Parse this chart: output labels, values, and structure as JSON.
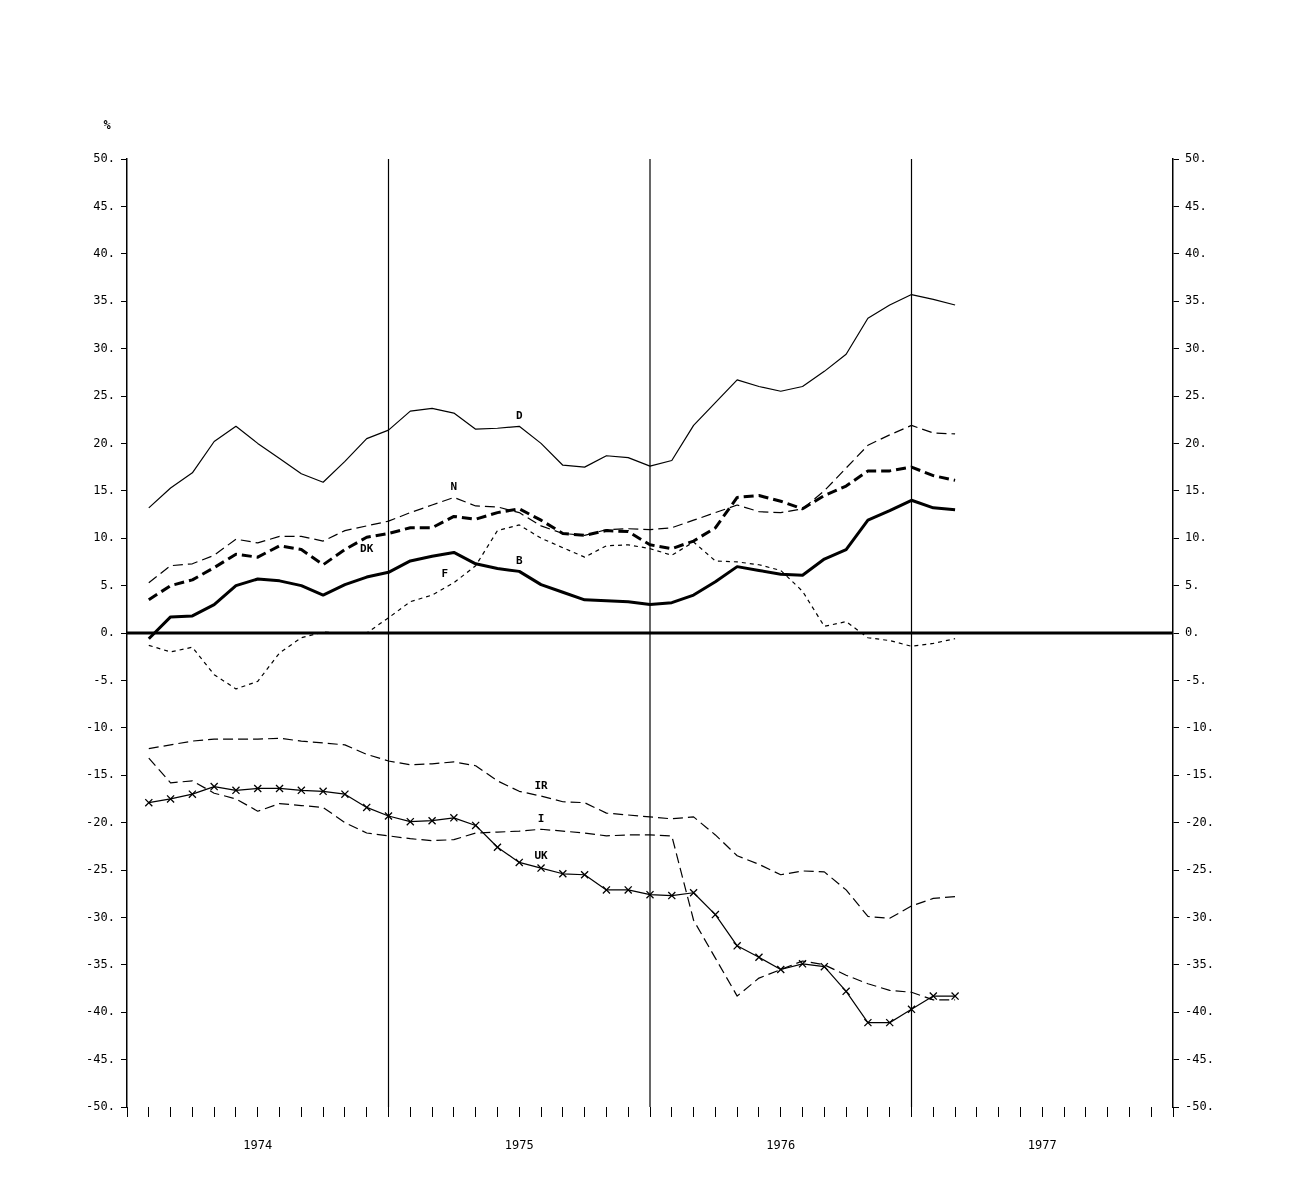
{
  "chart_data": {
    "type": "line",
    "ylabel": "%",
    "xlim": [
      "1974-01",
      "1978-01"
    ],
    "xticks": [
      {
        "value": "1974-01",
        "label": null
      },
      {
        "value": "1974-02",
        "label": null
      },
      {
        "value": "1974-03",
        "label": null
      },
      {
        "value": "1974-04",
        "label": null
      },
      {
        "value": "1974-05",
        "label": null
      },
      {
        "value": "1974-06",
        "label": null
      },
      {
        "value": "1974-07",
        "label": "1974"
      },
      {
        "value": "1974-08",
        "label": null
      },
      {
        "value": "1974-09",
        "label": null
      },
      {
        "value": "1974-10",
        "label": null
      },
      {
        "value": "1974-11",
        "label": null
      },
      {
        "value": "1974-12",
        "label": null
      },
      {
        "value": "1975-01",
        "label": null
      },
      {
        "value": "1975-02",
        "label": null
      },
      {
        "value": "1975-03",
        "label": null
      },
      {
        "value": "1975-04",
        "label": null
      },
      {
        "value": "1975-05",
        "label": null
      },
      {
        "value": "1975-06",
        "label": null
      },
      {
        "value": "1975-07",
        "label": "1975"
      },
      {
        "value": "1975-08",
        "label": null
      },
      {
        "value": "1975-09",
        "label": null
      },
      {
        "value": "1975-10",
        "label": null
      },
      {
        "value": "1975-11",
        "label": null
      },
      {
        "value": "1975-12",
        "label": null
      },
      {
        "value": "1976-01",
        "label": null
      },
      {
        "value": "1976-02",
        "label": null
      },
      {
        "value": "1976-03",
        "label": null
      },
      {
        "value": "1976-04",
        "label": null
      },
      {
        "value": "1976-05",
        "label": null
      },
      {
        "value": "1976-06",
        "label": null
      },
      {
        "value": "1976-07",
        "label": "1976"
      },
      {
        "value": "1976-08",
        "label": null
      },
      {
        "value": "1976-09",
        "label": null
      },
      {
        "value": "1976-10",
        "label": null
      },
      {
        "value": "1976-11",
        "label": null
      },
      {
        "value": "1976-12",
        "label": null
      },
      {
        "value": "1977-01",
        "label": null
      },
      {
        "value": "1977-02",
        "label": null
      },
      {
        "value": "1977-03",
        "label": null
      },
      {
        "value": "1977-04",
        "label": null
      },
      {
        "value": "1977-05",
        "label": null
      },
      {
        "value": "1977-06",
        "label": null
      },
      {
        "value": "1977-07",
        "label": "1977"
      },
      {
        "value": "1977-08",
        "label": null
      },
      {
        "value": "1977-09",
        "label": null
      },
      {
        "value": "1977-10",
        "label": null
      },
      {
        "value": "1977-11",
        "label": null
      },
      {
        "value": "1977-12",
        "label": null
      },
      {
        "value": "1978-01",
        "label": null
      }
    ],
    "ylim": [
      -50,
      50
    ],
    "yticks": [
      {
        "value": -50,
        "label": "-50."
      },
      {
        "value": -45,
        "label": "-45."
      },
      {
        "value": -40,
        "label": "-40."
      },
      {
        "value": -35,
        "label": "-35."
      },
      {
        "value": -30,
        "label": "-30."
      },
      {
        "value": -25,
        "label": "-25."
      },
      {
        "value": -20,
        "label": "-20."
      },
      {
        "value": -15,
        "label": "-15."
      },
      {
        "value": -10,
        "label": "-10."
      },
      {
        "value": -5,
        "label": "-5."
      },
      {
        "value": 0,
        "label": "0."
      },
      {
        "value": 5,
        "label": "5."
      },
      {
        "value": 10,
        "label": "10."
      },
      {
        "value": 15,
        "label": "15."
      },
      {
        "value": 20,
        "label": "20."
      },
      {
        "value": 25,
        "label": "25."
      },
      {
        "value": 30,
        "label": "30."
      },
      {
        "value": 35,
        "label": "35."
      },
      {
        "value": 40,
        "label": "40."
      },
      {
        "value": 45,
        "label": "45."
      },
      {
        "value": 50,
        "label": "50."
      }
    ],
    "y2lim": [
      -50,
      50
    ],
    "y2ticks": [
      {
        "value": -50,
        "label": "-50."
      },
      {
        "value": -45,
        "label": "-45."
      },
      {
        "value": -40,
        "label": "-40."
      },
      {
        "value": -35,
        "label": "-35."
      },
      {
        "value": -30,
        "label": "-30."
      },
      {
        "value": -25,
        "label": "-25."
      },
      {
        "value": -20,
        "label": "-20."
      },
      {
        "value": -15,
        "label": "-15."
      },
      {
        "value": -10,
        "label": "-10."
      },
      {
        "value": -5,
        "label": "-5."
      },
      {
        "value": 0,
        "label": "0."
      },
      {
        "value": 5,
        "label": "5."
      },
      {
        "value": 10,
        "label": "10."
      },
      {
        "value": 15,
        "label": "15."
      },
      {
        "value": 20,
        "label": "20."
      },
      {
        "value": 25,
        "label": "25."
      },
      {
        "value": 30,
        "label": "30."
      },
      {
        "value": 35,
        "label": "35."
      },
      {
        "value": 40,
        "label": "40."
      },
      {
        "value": 45,
        "label": "45."
      },
      {
        "value": 50,
        "label": "50."
      }
    ],
    "grid": false,
    "legend": false,
    "ref_lines": [
      {
        "axis": "y",
        "value": 0,
        "color": "#000000"
      },
      {
        "axis": "x",
        "value": "1975-01",
        "color": "#000000"
      },
      {
        "axis": "x",
        "value": "1976-01",
        "color": "#000000"
      },
      {
        "axis": "x",
        "value": "1977-01",
        "color": "#000000"
      }
    ],
    "x": [
      "1974-02",
      "1974-03",
      "1974-04",
      "1974-05",
      "1974-06",
      "1974-07",
      "1974-08",
      "1974-09",
      "1974-10",
      "1974-11",
      "1974-12",
      "1975-01",
      "1975-02",
      "1975-03",
      "1975-04",
      "1975-05",
      "1975-06",
      "1975-07",
      "1975-08",
      "1975-09",
      "1975-10",
      "1975-11",
      "1975-12",
      "1976-01",
      "1976-02",
      "1976-03",
      "1976-04",
      "1976-05",
      "1976-06",
      "1976-07",
      "1976-08",
      "1976-09",
      "1976-10",
      "1976-11",
      "1976-12",
      "1977-01",
      "1977-02",
      "1977-03"
    ],
    "series": [
      {
        "name": "D",
        "color": "#000000",
        "line_style": "solid",
        "values": [
          13.2,
          15.3,
          16.9,
          20.2,
          21.8,
          20.0,
          18.4,
          16.8,
          15.9,
          18.1,
          20.5,
          21.4,
          23.4,
          23.7,
          23.2,
          21.5,
          21.6,
          21.8,
          20.0,
          17.7,
          17.5,
          18.7,
          18.5,
          17.6,
          18.2,
          21.9,
          24.3,
          26.7,
          26.0,
          25.5,
          26.0,
          27.6,
          29.4,
          33.2,
          34.6,
          35.7,
          35.2,
          34.6
        ]
      },
      {
        "name": "N",
        "color": "#000000",
        "line_style": "dashed",
        "values": [
          5.3,
          7.1,
          7.3,
          8.2,
          9.9,
          9.5,
          10.2,
          10.2,
          9.7,
          10.8,
          11.3,
          11.8,
          12.7,
          13.5,
          14.3,
          13.4,
          13.3,
          12.7,
          11.3,
          10.5,
          10.3,
          10.9,
          11.0,
          10.9,
          11.1,
          11.9,
          12.7,
          13.5,
          12.8,
          12.7,
          13.1,
          15.0,
          17.4,
          19.8,
          20.9,
          21.9,
          21.1,
          21.0
        ]
      },
      {
        "name": "DK",
        "color": "#000000",
        "line_style": "dashed",
        "values": [
          3.5,
          5.0,
          5.6,
          6.9,
          8.3,
          8.0,
          9.2,
          8.8,
          7.2,
          8.8,
          10.1,
          10.5,
          11.1,
          11.1,
          12.3,
          12.0,
          12.7,
          13.1,
          11.9,
          10.5,
          10.3,
          10.8,
          10.7,
          9.3,
          8.9,
          9.7,
          11.1,
          14.3,
          14.5,
          13.9,
          13.1,
          14.5,
          15.5,
          17.1,
          17.1,
          17.5,
          16.6,
          16.1
        ]
      },
      {
        "name": "F",
        "color": "#000000",
        "line_style": "dotted",
        "values": [
          -1.3,
          -2.0,
          -1.5,
          -4.4,
          -5.9,
          -5.1,
          -2.1,
          -0.5,
          0.1,
          0.0,
          0.0,
          1.6,
          3.3,
          4.0,
          5.3,
          7.1,
          10.8,
          11.4,
          10.0,
          9.0,
          8.0,
          9.2,
          9.3,
          8.9,
          8.2,
          9.6,
          7.6,
          7.5,
          7.2,
          6.6,
          4.4,
          0.7,
          1.2,
          -0.5,
          -0.8,
          -1.4,
          -1.1,
          -0.6
        ]
      },
      {
        "name": "B",
        "color": "#000000",
        "line_style": "solid",
        "values": [
          -0.6,
          1.7,
          1.8,
          3.0,
          5.0,
          5.7,
          5.5,
          5.0,
          4.0,
          5.1,
          5.9,
          6.4,
          7.6,
          8.1,
          8.5,
          7.3,
          6.8,
          6.5,
          5.1,
          4.3,
          3.5,
          3.4,
          3.3,
          3.0,
          3.2,
          4.0,
          5.4,
          7.0,
          6.6,
          6.2,
          6.1,
          7.8,
          8.8,
          11.9,
          12.9,
          14.0,
          13.2,
          13.0
        ]
      },
      {
        "name": "IR",
        "color": "#000000",
        "line_style": "dashed",
        "values": [
          -12.2,
          -11.8,
          -11.4,
          -11.2,
          -11.2,
          -11.2,
          -11.1,
          -11.4,
          -11.6,
          -11.8,
          -12.8,
          -13.5,
          -13.9,
          -13.8,
          -13.6,
          -14.0,
          -15.6,
          -16.7,
          -17.2,
          -17.8,
          -17.9,
          -19.0,
          -19.2,
          -19.4,
          -19.6,
          -19.4,
          -21.3,
          -23.5,
          -24.4,
          -25.5,
          -25.1,
          -25.2,
          -27.1,
          -29.9,
          -30.1,
          -28.8,
          -28.0,
          -27.8
        ]
      },
      {
        "name": "I",
        "color": "#000000",
        "line_style": "dashed",
        "values": [
          -13.2,
          -15.8,
          -15.6,
          -16.9,
          -17.5,
          -18.8,
          -18.0,
          -18.2,
          -18.4,
          -20.0,
          -21.1,
          -21.4,
          -21.7,
          -21.9,
          -21.8,
          -21.1,
          -21.0,
          -20.9,
          -20.7,
          -20.9,
          -21.1,
          -21.4,
          -21.3,
          -21.3,
          -21.4,
          -30.3,
          -34.3,
          -38.3,
          -36.4,
          -35.5,
          -34.6,
          -35.0,
          -36.1,
          -37.0,
          -37.7,
          -37.9,
          -38.7,
          -38.7
        ]
      },
      {
        "name": "UK",
        "color": "#000000",
        "line_style": "solid",
        "marker": "cross",
        "values": [
          -17.9,
          -17.5,
          -17.0,
          -16.2,
          -16.6,
          -16.4,
          -16.4,
          -16.6,
          -16.7,
          -17.0,
          -18.4,
          -19.3,
          -19.9,
          -19.8,
          -19.5,
          -20.3,
          -22.6,
          -24.2,
          -24.8,
          -25.4,
          -25.5,
          -27.1,
          -27.1,
          -27.6,
          -27.7,
          -27.4,
          -29.7,
          -33.0,
          -34.2,
          -35.5,
          -34.9,
          -35.2,
          -37.8,
          -41.1,
          -41.1,
          -39.7,
          -38.3,
          -38.3
        ]
      }
    ]
  }
}
